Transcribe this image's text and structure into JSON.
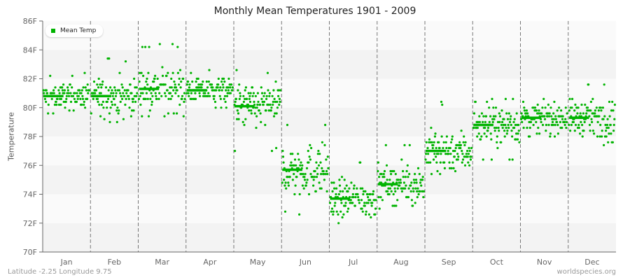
{
  "title": "Monthly Mean Temperatures 1901 - 2009",
  "footer": {
    "location": "Latitude -2.25 Longitude 9.75",
    "source": "worldspecies.org"
  },
  "legend": {
    "label": "Mean Temp",
    "color": "#00b300"
  },
  "colors": {
    "points": "#00b300",
    "band_light": "#fafafa",
    "band_dark": "#f3f3f3",
    "axis": "#666666",
    "grid_dash": "#777777"
  },
  "chart_data": {
    "type": "scatter",
    "title": "Monthly Mean Temperatures 1901 - 2009",
    "xlabel": "",
    "ylabel": "Temperature",
    "ylim": [
      70,
      86
    ],
    "yticks": [
      "70F",
      "72F",
      "74F",
      "76F",
      "78F",
      "80F",
      "82F",
      "84F",
      "86F"
    ],
    "categories": [
      "Jan",
      "Feb",
      "Mar",
      "Apr",
      "May",
      "Jun",
      "Jul",
      "Aug",
      "Sep",
      "Oct",
      "Nov",
      "Dec"
    ],
    "legend": [
      "Mean Temp"
    ],
    "legend_position": "top-left",
    "grid": "alternating horizontal bands, dashed vertical month separators",
    "years": [
      1901,
      2009
    ],
    "series": [
      {
        "name": "Mean Temp (monthly mean line)",
        "values": [
          80.8,
          80.8,
          81.3,
          81.2,
          80.1,
          75.7,
          73.7,
          74.7,
          77.0,
          78.8,
          79.3,
          79.3
        ]
      },
      {
        "name": "Mean Temp (yearly range min)",
        "values": [
          79.5,
          79.0,
          79.3,
          79.8,
          77.0,
          72.5,
          71.8,
          72.9,
          75.2,
          76.3,
          77.9,
          77.4
        ]
      },
      {
        "name": "Mean Temp (yearly range max)",
        "values": [
          82.4,
          83.5,
          84.4,
          82.7,
          82.6,
          79.0,
          76.3,
          77.5,
          80.4,
          80.7,
          81.4,
          81.7
        ]
      }
    ]
  },
  "yaxis": {
    "ticks": [
      "86F",
      "84F",
      "82F",
      "80F",
      "78F",
      "76F",
      "74F",
      "72F",
      "70F"
    ]
  },
  "xaxis": {
    "ticks": [
      "Jan",
      "Feb",
      "Mar",
      "Apr",
      "May",
      "Jun",
      "Jul",
      "Aug",
      "Sep",
      "Oct",
      "Nov",
      "Dec"
    ]
  }
}
